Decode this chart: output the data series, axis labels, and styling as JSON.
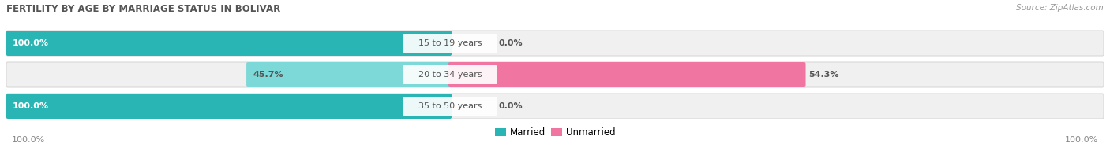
{
  "title": "FERTILITY BY AGE BY MARRIAGE STATUS IN BOLIVAR",
  "source": "Source: ZipAtlas.com",
  "categories": [
    "15 to 19 years",
    "20 to 34 years",
    "35 to 50 years"
  ],
  "married_values": [
    100.0,
    45.7,
    100.0
  ],
  "unmarried_values": [
    0.0,
    54.3,
    0.0
  ],
  "married_color": "#2AB5B5",
  "married_color_light": "#7DD8D8",
  "unmarried_color": "#F075A0",
  "unmarried_color_light": "#F9C0D2",
  "bar_bg_color": "#F0F0F0",
  "title_fontsize": 8.5,
  "source_fontsize": 7.5,
  "label_fontsize": 8,
  "tick_fontsize": 8,
  "legend_fontsize": 8.5,
  "category_fontsize": 8,
  "figsize": [
    14.06,
    1.96
  ],
  "dpi": 100,
  "left_axis_label": "100.0%",
  "right_axis_label": "100.0%"
}
